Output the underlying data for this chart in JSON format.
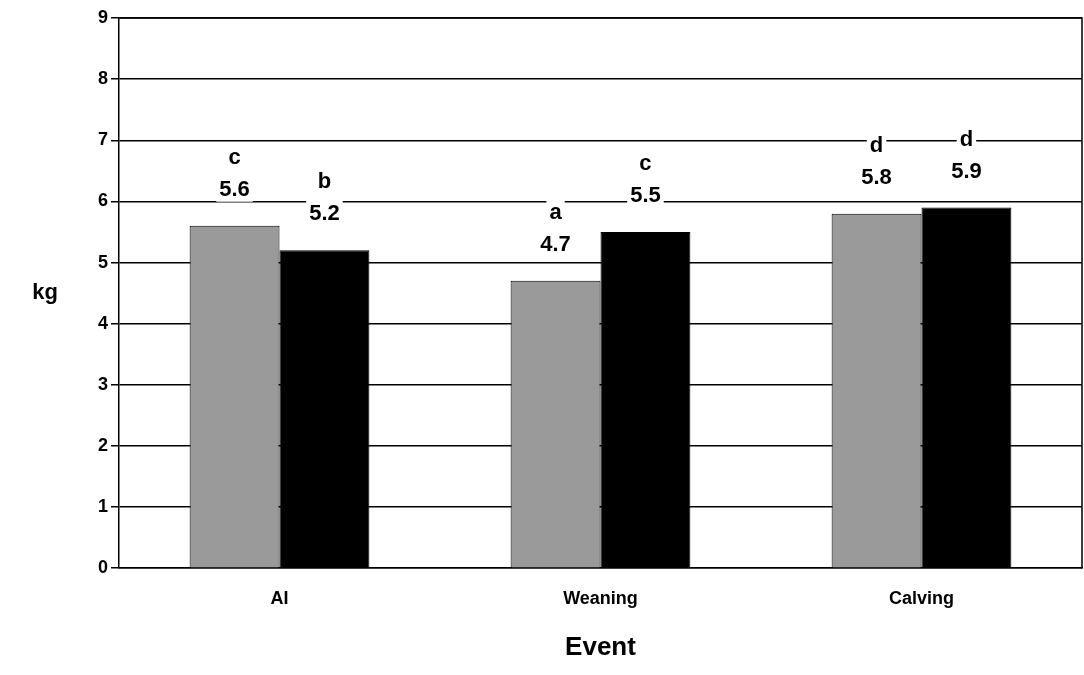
{
  "chart_data": {
    "type": "bar",
    "xlabel": "Event",
    "ylabel": "kg",
    "categories": [
      "AI",
      "Weaning",
      "Calving"
    ],
    "series": [
      {
        "color": "#9a9a9a",
        "values": [
          5.6,
          4.7,
          5.8
        ],
        "value_labels": [
          "c\n5.6",
          "a\n4.7",
          "d\n5.8"
        ]
      },
      {
        "color": "#000000",
        "values": [
          5.2,
          5.5,
          5.9
        ],
        "value_labels": [
          "b\n5.2",
          "c\n5.5",
          "d\n5.9"
        ]
      }
    ],
    "ylim": [
      0,
      9
    ],
    "yticks": [
      0,
      1,
      2,
      3,
      4,
      5,
      6,
      7,
      8,
      9
    ],
    "grid": "y",
    "legend": false
  }
}
